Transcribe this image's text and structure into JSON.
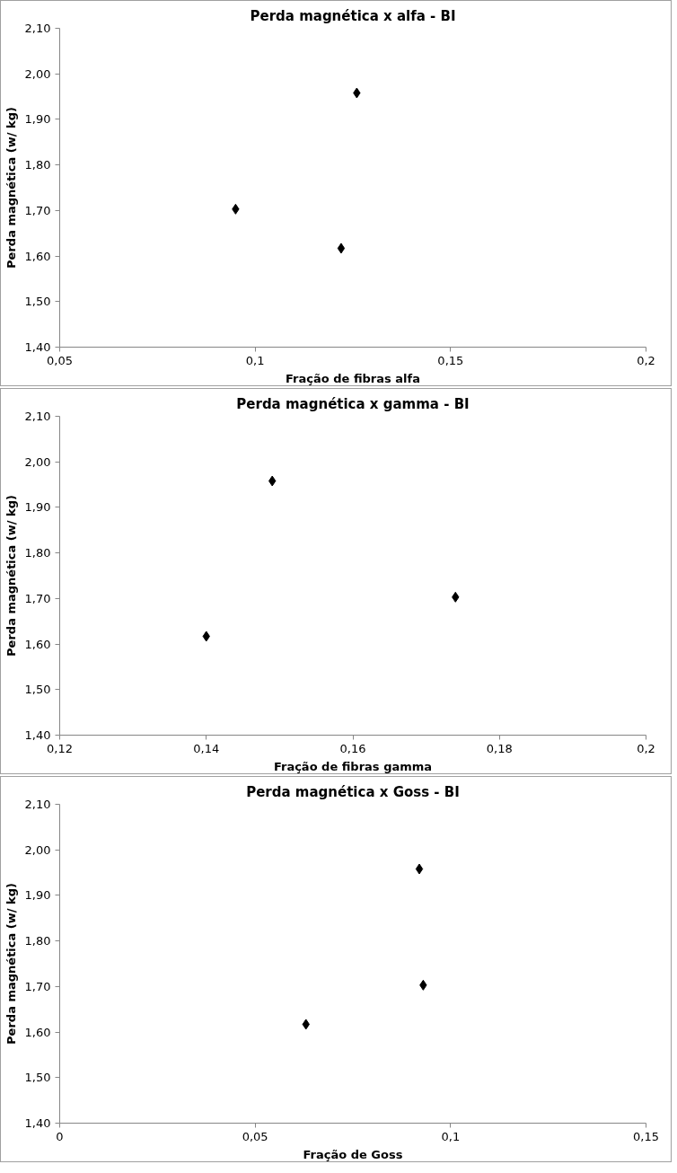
{
  "chart_data": [
    {
      "type": "scatter",
      "title": "Perda magnética x alfa - BI",
      "xlabel": "Fração de fibras alfa",
      "ylabel": "Perda magnética (w/ kg)",
      "marker": "diamond",
      "grid": false,
      "series": [
        {
          "color": "#000000",
          "x": [
            0.095,
            0.122,
            0.126
          ],
          "values": [
            1.703,
            1.617,
            1.958
          ]
        }
      ],
      "xlim": [
        0.05,
        0.2
      ],
      "xticks": [
        {
          "value": 0.05,
          "label": "0,05"
        },
        {
          "value": 0.1,
          "label": "0,1"
        },
        {
          "value": 0.15,
          "label": "0,15"
        },
        {
          "value": 0.2,
          "label": "0,2"
        }
      ],
      "ylim": [
        1.4,
        2.1
      ],
      "yticks": [
        {
          "value": 1.4,
          "label": "1,40"
        },
        {
          "value": 1.5,
          "label": "1,50"
        },
        {
          "value": 1.6,
          "label": "1,60"
        },
        {
          "value": 1.7,
          "label": "1,70"
        },
        {
          "value": 1.8,
          "label": "1,80"
        },
        {
          "value": 1.9,
          "label": "1,90"
        },
        {
          "value": 2.0,
          "label": "2,00"
        },
        {
          "value": 2.1,
          "label": "2,10"
        }
      ]
    },
    {
      "type": "scatter",
      "title": "Perda magnética x gamma - BI",
      "xlabel": "Fração de fibras gamma",
      "ylabel": "Perda magnética (w/ kg)",
      "marker": "diamond",
      "grid": false,
      "series": [
        {
          "color": "#000000",
          "x": [
            0.14,
            0.149,
            0.174
          ],
          "values": [
            1.617,
            1.958,
            1.703
          ]
        }
      ],
      "xlim": [
        0.12,
        0.2
      ],
      "xticks": [
        {
          "value": 0.12,
          "label": "0,12"
        },
        {
          "value": 0.14,
          "label": "0,14"
        },
        {
          "value": 0.16,
          "label": "0,16"
        },
        {
          "value": 0.18,
          "label": "0,18"
        },
        {
          "value": 0.2,
          "label": "0,2"
        }
      ],
      "ylim": [
        1.4,
        2.1
      ],
      "yticks": [
        {
          "value": 1.4,
          "label": "1,40"
        },
        {
          "value": 1.5,
          "label": "1,50"
        },
        {
          "value": 1.6,
          "label": "1,60"
        },
        {
          "value": 1.7,
          "label": "1,70"
        },
        {
          "value": 1.8,
          "label": "1,80"
        },
        {
          "value": 1.9,
          "label": "1,90"
        },
        {
          "value": 2.0,
          "label": "2,00"
        },
        {
          "value": 2.1,
          "label": "2,10"
        }
      ]
    },
    {
      "type": "scatter",
      "title": "Perda magnética x Goss - BI",
      "xlabel": "Fração de Goss",
      "ylabel": "Perda magnética (w/ kg)",
      "marker": "diamond",
      "grid": false,
      "series": [
        {
          "color": "#000000",
          "x": [
            0.063,
            0.092,
            0.093
          ],
          "values": [
            1.617,
            1.958,
            1.703
          ]
        }
      ],
      "xlim": [
        0,
        0.15
      ],
      "xticks": [
        0,
        {
          "value": 0.05,
          "label": "0,05"
        },
        {
          "value": 0.1,
          "label": "0,1"
        },
        {
          "value": 0.15,
          "label": "0,15"
        }
      ],
      "ylim": [
        1.4,
        2.1
      ],
      "yticks": [
        {
          "value": 1.4,
          "label": "1,40"
        },
        {
          "value": 1.5,
          "label": "1,50"
        },
        {
          "value": 1.6,
          "label": "1,60"
        },
        {
          "value": 1.7,
          "label": "1,70"
        },
        {
          "value": 1.8,
          "label": "1,80"
        },
        {
          "value": 1.9,
          "label": "1,90"
        },
        {
          "value": 2.0,
          "label": "2,00"
        },
        {
          "value": 2.1,
          "label": "2,10"
        }
      ]
    }
  ]
}
